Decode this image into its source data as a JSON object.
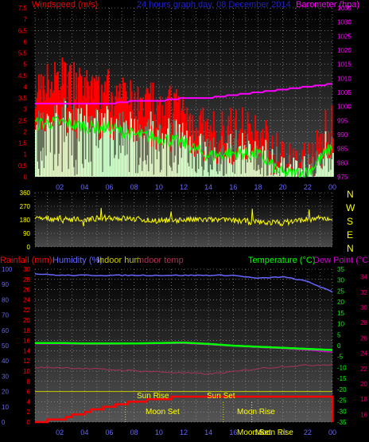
{
  "top": {
    "title": "24 hours graph day, 08 December 2014",
    "left_label": "Windspeed (m/s)",
    "right_label": "Barometer (hpa)"
  },
  "mid": {
    "directions": [
      "N",
      "W",
      "S",
      "E",
      "N"
    ]
  },
  "bottom": {
    "labels": [
      "Rainfall (mm)",
      "Humidity (%)",
      "Indoor hum",
      "Indoor temp",
      "Temperature (°C)",
      "Dew Point (°C)"
    ],
    "events": [
      "Sun Rise",
      "Sun Set",
      "Moon Set",
      "Moon Rise",
      "Moon Set",
      "Moon Rise"
    ]
  },
  "colors": {
    "wind": "#ff0000",
    "gust": "#00ff00",
    "avg": "#ccffcc",
    "baro": "#ff00ff",
    "dir": "#ffff00",
    "rain": "#ff0000",
    "humidity": "#6666ff",
    "indoor_hum": "#c8c800",
    "indoor_temp": "#aa3355",
    "temp": "#00ff00",
    "dew": "#cc00cc"
  },
  "chart_data": [
    {
      "type": "line",
      "x": [
        "00",
        "02",
        "04",
        "06",
        "08",
        "10",
        "12",
        "14",
        "16",
        "18",
        "20",
        "22",
        "00"
      ],
      "x_ticks": [
        "02",
        "04",
        "06",
        "08",
        "10",
        "12",
        "14",
        "16",
        "18",
        "20",
        "22",
        "00"
      ],
      "left_axis": {
        "ticks": [
          "7.5",
          "7",
          "6.5",
          "6",
          "5.5",
          "5",
          "4.5",
          "4",
          "3.5",
          "3",
          "2.5",
          "2",
          "1.5",
          "1",
          "0.5",
          "0"
        ],
        "ylim": [
          0,
          7.5
        ]
      },
      "right_axis": {
        "ticks": [
          "1035",
          "1030",
          "1025",
          "1020",
          "1015",
          "1010",
          "1005",
          "1000",
          "995",
          "990",
          "985",
          "980",
          "975"
        ],
        "ylim": [
          975,
          1035
        ]
      },
      "series": [
        {
          "name": "Windspeed (m/s)",
          "axis": "left",
          "values": [
            3.8,
            3.9,
            3.6,
            3.5,
            3.0,
            2.8,
            2.4,
            1.5,
            1.7,
            1.6,
            0.2,
            0.3,
            2.2
          ]
        },
        {
          "name": "Barometer (hpa)",
          "axis": "right",
          "values": [
            1001,
            1001,
            1001,
            1001,
            1002,
            1002,
            1003,
            1003,
            1004,
            1005,
            1006,
            1007,
            1008
          ]
        }
      ]
    },
    {
      "type": "scatter",
      "x_range": [
        "00",
        "00"
      ],
      "axis": {
        "ticks": [
          "360",
          "270",
          "180",
          "90",
          "0"
        ],
        "ylim": [
          0,
          360
        ]
      },
      "series": [
        {
          "name": "Wind direction",
          "values": [
            185,
            190,
            180,
            195,
            185,
            175,
            180,
            180,
            175,
            165,
            160,
            185,
            190
          ]
        }
      ]
    },
    {
      "type": "line",
      "x": [
        "00",
        "02",
        "04",
        "06",
        "08",
        "10",
        "12",
        "14",
        "16",
        "18",
        "20",
        "22",
        "00"
      ],
      "x_ticks": [
        "02",
        "04",
        "06",
        "08",
        "10",
        "12",
        "14",
        "16",
        "18",
        "20",
        "22",
        "00"
      ],
      "axes": {
        "humidity": {
          "ticks": [
            "100",
            "90",
            "80",
            "70",
            "60",
            "50",
            "40",
            "30",
            "20",
            "10",
            "0"
          ],
          "ylim": [
            0,
            100
          ]
        },
        "rain": {
          "ticks": [
            "30",
            "28",
            "26",
            "24",
            "22",
            "20",
            "18",
            "16",
            "14",
            "12",
            "10",
            "8",
            "6",
            "4",
            "2",
            "0"
          ],
          "ylim": [
            0,
            30
          ]
        },
        "temperature": {
          "ticks": [
            "35",
            "30",
            "25",
            "20",
            "15",
            "10",
            "5",
            "0",
            "-5",
            "-10",
            "-15",
            "-20",
            "-25",
            "-30",
            "-35"
          ],
          "ylim": [
            -35,
            35
          ]
        },
        "dew_point": {
          "ticks": [
            "34",
            "32",
            "30",
            "28",
            "26",
            "24",
            "22",
            "20",
            "18",
            "16"
          ],
          "ylim": [
            15,
            35
          ]
        }
      },
      "series": [
        {
          "name": "Humidity (%)",
          "axis": "humidity",
          "values": [
            97,
            96,
            96,
            96,
            96,
            96,
            96,
            96,
            96,
            94,
            95,
            92,
            85
          ]
        },
        {
          "name": "Temperature (°C)",
          "axis": "temperature",
          "values": [
            1.2,
            1.2,
            1.0,
            1.0,
            1.0,
            1.2,
            1.4,
            0.8,
            0.0,
            -0.5,
            -1.0,
            -1.5,
            -2.0
          ]
        },
        {
          "name": "Dew Point (°C)",
          "axis": "temperature",
          "values": [
            0.8,
            0.8,
            0.7,
            0.7,
            0.8,
            0.9,
            1.0,
            0.5,
            -0.2,
            -0.8,
            -1.3,
            -2.0,
            -3.0
          ]
        },
        {
          "name": "Indoor hum",
          "axis": "humidity",
          "values": [
            20,
            20,
            20,
            20,
            20,
            20,
            20,
            20,
            20,
            20,
            20,
            20,
            20
          ]
        },
        {
          "name": "Indoor temp",
          "axis": "temperature",
          "values": [
            -10,
            -10,
            -10.5,
            -11,
            -11.5,
            -12,
            -12.5,
            -13,
            -12,
            -10.5,
            -9.5,
            -9,
            -8.5
          ]
        },
        {
          "name": "Rainfall (mm)",
          "axis": "rain",
          "values": [
            0,
            0.5,
            2,
            3,
            4,
            4.5,
            5,
            5,
            5,
            5,
            5,
            5,
            5
          ]
        }
      ]
    }
  ]
}
